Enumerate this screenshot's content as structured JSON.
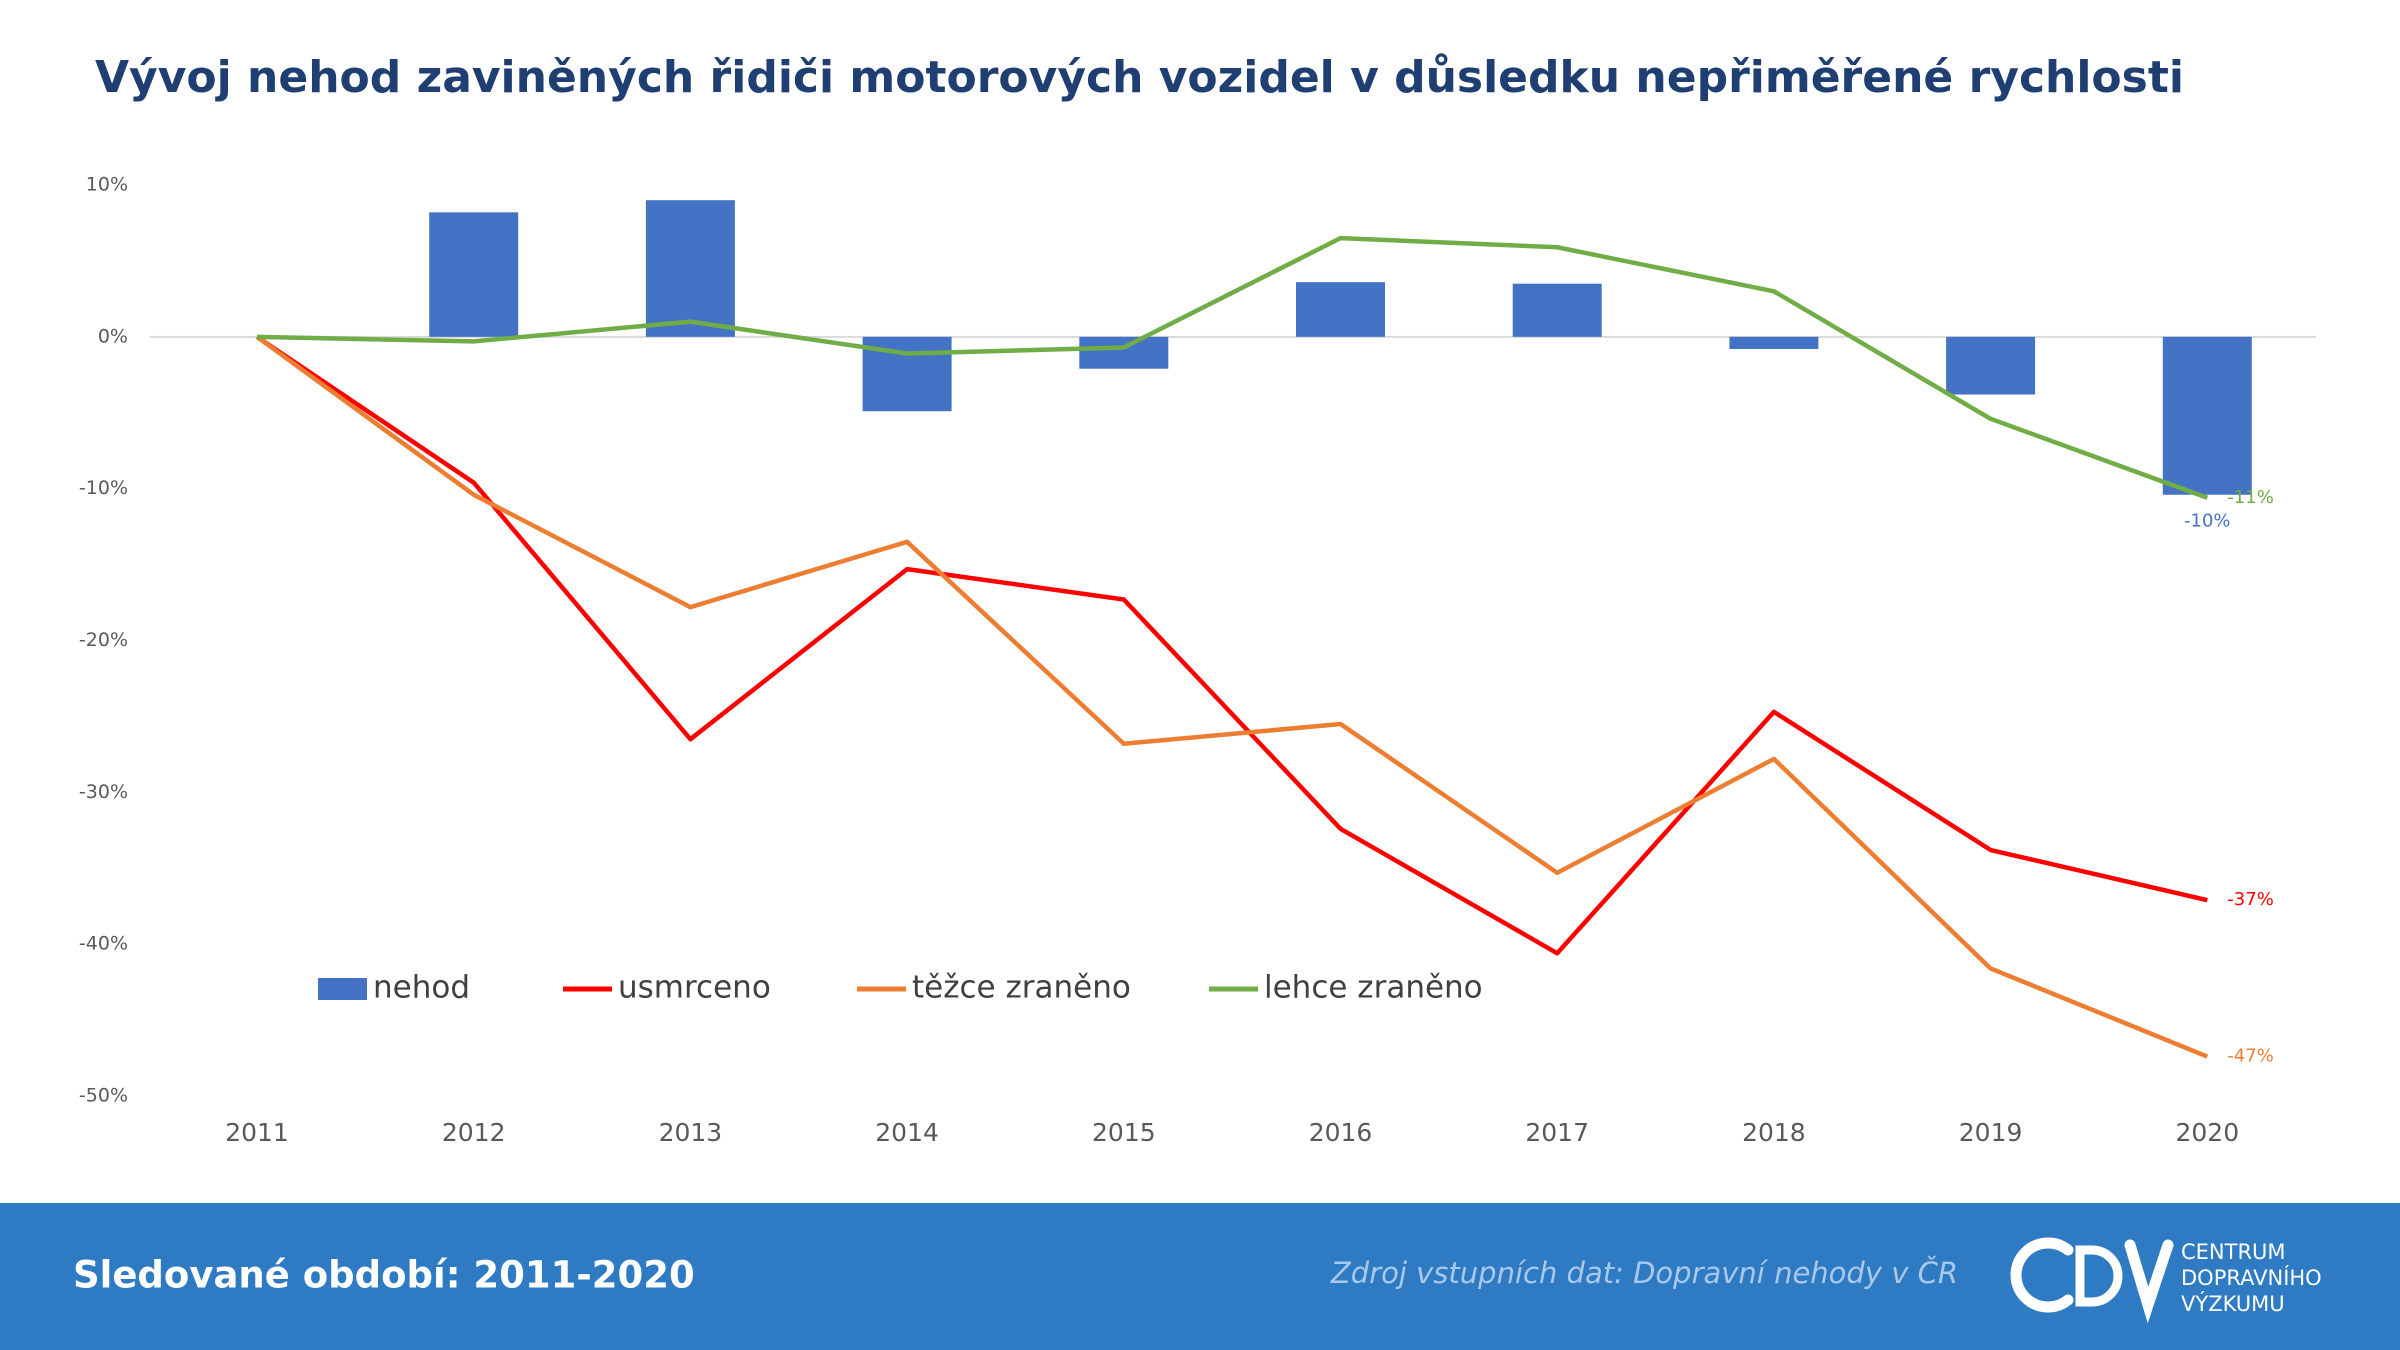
{
  "chart_data": {
    "type": "combo",
    "title": "Vývoj nehod zaviněných řidiči motorových vozidel v důsledku nepřiměřené rychlosti",
    "categories": [
      "2011",
      "2012",
      "2013",
      "2014",
      "2015",
      "2016",
      "2017",
      "2018",
      "2019",
      "2020"
    ],
    "ylim": [
      -50,
      10
    ],
    "yticks": [
      {
        "value": 10,
        "label": "10%"
      },
      {
        "value": 0,
        "label": "0%"
      },
      {
        "value": -10,
        "label": "-10%"
      },
      {
        "value": -20,
        "label": "-20%"
      },
      {
        "value": -30,
        "label": "-30%"
      },
      {
        "value": -40,
        "label": "-40%"
      },
      {
        "value": -50,
        "label": "-50%"
      }
    ],
    "legend": "bottom-left",
    "series": [
      {
        "name": "nehod",
        "type": "bar",
        "color": "#4472c4",
        "values": [
          0,
          8.2,
          9.0,
          -4.9,
          -2.1,
          3.6,
          3.5,
          -0.8,
          -3.8,
          -10.4
        ],
        "value_labels": [
          null,
          null,
          null,
          null,
          null,
          null,
          null,
          null,
          null,
          "-10%"
        ]
      },
      {
        "name": "usmrceno",
        "type": "line",
        "color": "#ff0000",
        "values": [
          0,
          -9.6,
          -26.5,
          -15.3,
          -17.3,
          -32.4,
          -40.6,
          -24.7,
          -33.8,
          -37.1
        ],
        "value_labels": [
          null,
          null,
          null,
          null,
          null,
          null,
          null,
          null,
          null,
          "-37%"
        ]
      },
      {
        "name": "těžce zraněno",
        "type": "line",
        "color": "#ed7d31",
        "values": [
          0,
          -10.4,
          -17.8,
          -13.5,
          -26.8,
          -25.5,
          -35.3,
          -27.8,
          -41.6,
          -47.4
        ],
        "value_labels": [
          null,
          null,
          null,
          null,
          null,
          null,
          null,
          null,
          null,
          "-47%"
        ]
      },
      {
        "name": "lehce zraněno",
        "type": "line",
        "color": "#70ad47",
        "values": [
          0,
          -0.3,
          1.0,
          -1.1,
          -0.7,
          6.5,
          5.9,
          3.0,
          -5.4,
          -10.6
        ],
        "value_labels": [
          null,
          null,
          null,
          null,
          null,
          null,
          null,
          null,
          null,
          "-11%"
        ]
      }
    ]
  },
  "footer": {
    "period": "Sledované období: 2011-2020",
    "source": "Zdroj vstupních dat: Dopravní nehody v ČR",
    "logo": [
      "CENTRUM",
      "DOPRAVNÍHO",
      "VÝZKUMU"
    ]
  }
}
